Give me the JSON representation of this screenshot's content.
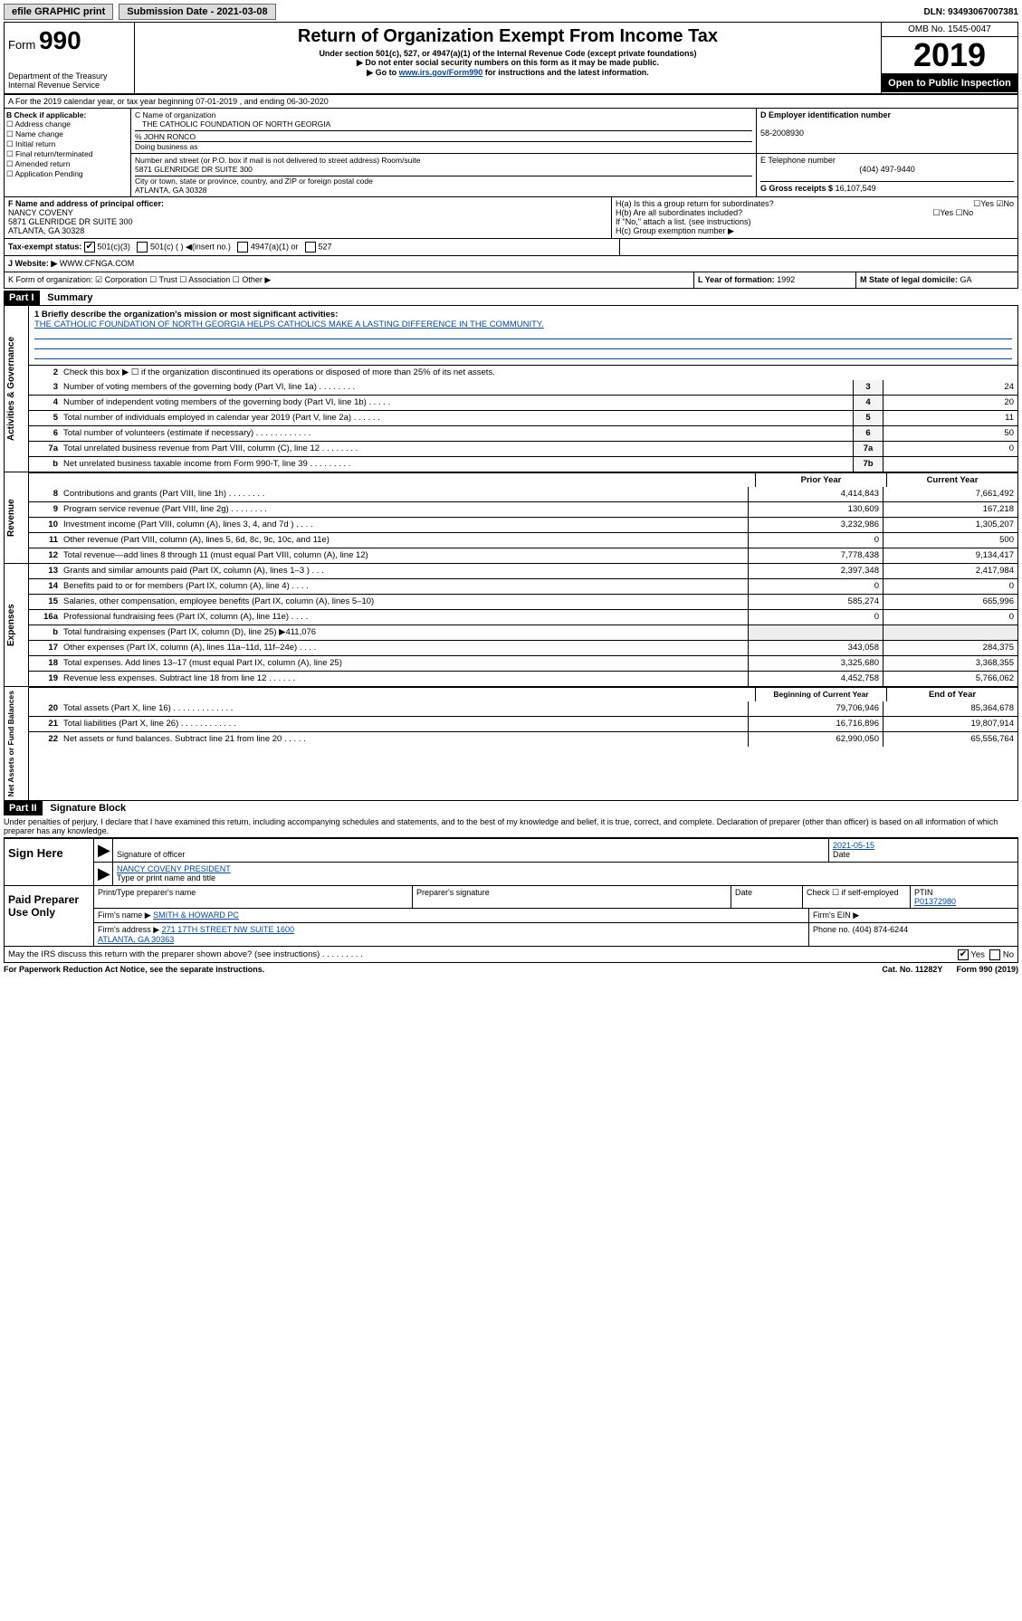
{
  "topbar": {
    "efile": "efile GRAPHIC print",
    "sub_label": "Submission Date - 2021-03-08",
    "dln": "DLN: 93493067007381"
  },
  "header": {
    "form": "Form",
    "form_no": "990",
    "dept": "Department of the Treasury\nInternal Revenue Service",
    "title": "Return of Organization Exempt From Income Tax",
    "sub1": "Under section 501(c), 527, or 4947(a)(1) of the Internal Revenue Code (except private foundations)",
    "sub2": "▶ Do not enter social security numbers on this form as it may be made public.",
    "sub3": "▶ Go to www.irs.gov/Form990 for instructions and the latest information.",
    "omb": "OMB No. 1545-0047",
    "year": "2019",
    "open": "Open to Public Inspection"
  },
  "blockA": "A For the 2019 calendar year, or tax year beginning 07-01-2019    , and ending 06-30-2020",
  "blockB": {
    "title": "B Check if applicable:",
    "items": [
      "Address change",
      "Name change",
      "Initial return",
      "Final return/terminated",
      "Amended return",
      "Application Pending"
    ]
  },
  "blockC": {
    "name_lbl": "C Name of organization",
    "name": "THE CATHOLIC FOUNDATION OF NORTH GEORGIA",
    "care": "% JOHN RONCO",
    "dba_lbl": "Doing business as",
    "addr_lbl": "Number and street (or P.O. box if mail is not delivered to street address)   Room/suite",
    "addr": "5871 GLENRIDGE DR SUITE 300",
    "city_lbl": "City or town, state or province, country, and ZIP or foreign postal code",
    "city": "ATLANTA, GA  30328"
  },
  "blockD": {
    "lbl": "D Employer identification number",
    "val": "58-2008930"
  },
  "blockE": {
    "lbl": "E Telephone number",
    "val": "(404) 497-9440"
  },
  "blockG": {
    "lbl": "G Gross receipts $",
    "val": "16,107,549"
  },
  "blockF": {
    "lbl": "F Name and address of principal officer:",
    "name": "NANCY COVENY",
    "addr": "5871 GLENRIDGE DR SUITE 300\nATLANTA, GA  30328"
  },
  "blockH": {
    "a": "H(a)  Is this a group return for subordinates?",
    "b": "H(b)  Are all subordinates included?",
    "note": "If \"No,\" attach a list. (see instructions)",
    "c": "H(c)  Group exemption number ▶"
  },
  "blockI": {
    "lbl": "Tax-exempt status:",
    "opts": [
      "501(c)(3)",
      "501(c) (   ) ◀(insert no.)",
      "4947(a)(1) or",
      "527"
    ]
  },
  "blockJ": {
    "lbl": "J   Website: ▶",
    "val": "WWW.CFNGA.COM"
  },
  "blockK": "K Form of organization:   ☑ Corporation  ☐ Trust  ☐ Association  ☐ Other ▶",
  "blockL": {
    "lbl": "L Year of formation:",
    "val": "1992"
  },
  "blockM": {
    "lbl": "M State of legal domicile:",
    "val": "GA"
  },
  "part1": {
    "head": "Part I",
    "title": "Summary",
    "vtab1": "Activities & Governance",
    "vtab2": "Revenue",
    "vtab3": "Expenses",
    "vtab4": "Net Assets or Fund Balances",
    "line1_lbl": "1  Briefly describe the organization's mission or most significant activities:",
    "line1_val": "THE CATHOLIC FOUNDATION OF NORTH GEORGIA HELPS CATHOLICS MAKE A LASTING DIFFERENCE IN THE COMMUNITY.",
    "line2": "Check this box ▶ ☐  if the organization discontinued its operations or disposed of more than 25% of its net assets.",
    "rows_gov": [
      {
        "n": "3",
        "lbl": "Number of voting members of the governing body (Part VI, line 1a)   .    .    .    .    .    .    .    .",
        "box": "3",
        "v": "24"
      },
      {
        "n": "4",
        "lbl": "Number of independent voting members of the governing body (Part VI, line 1b)  .    .    .    .    .",
        "box": "4",
        "v": "20"
      },
      {
        "n": "5",
        "lbl": "Total number of individuals employed in calendar year 2019 (Part V, line 2a)   .    .    .    .    .    .",
        "box": "5",
        "v": "11"
      },
      {
        "n": "6",
        "lbl": "Total number of volunteers (estimate if necessary)   .    .    .    .    .    .    .    .    .    .    .    .",
        "box": "6",
        "v": "50"
      },
      {
        "n": "7a",
        "lbl": "Total unrelated business revenue from Part VIII, column (C), line 12  .    .    .    .    .    .    .    .",
        "box": "7a",
        "v": "0"
      },
      {
        "n": "b",
        "lbl": "Net unrelated business taxable income from Form 990-T, line 39   .    .    .    .    .    .    .    .    .",
        "box": "7b",
        "v": ""
      }
    ],
    "py": "Prior Year",
    "cy": "Current Year",
    "rows_rev": [
      {
        "n": "8",
        "lbl": "Contributions and grants (Part VIII, line 1h)   .    .    .    .    .    .    .    .",
        "py": "4,414,843",
        "cy": "7,661,492"
      },
      {
        "n": "9",
        "lbl": "Program service revenue (Part VIII, line 2g)    .    .    .    .    .    .    .    .",
        "py": "130,609",
        "cy": "167,218"
      },
      {
        "n": "10",
        "lbl": "Investment income (Part VIII, column (A), lines 3, 4, and 7d )   .    .    .    .",
        "py": "3,232,986",
        "cy": "1,305,207"
      },
      {
        "n": "11",
        "lbl": "Other revenue (Part VIII, column (A), lines 5, 6d, 8c, 9c, 10c, and 11e)",
        "py": "0",
        "cy": "500"
      },
      {
        "n": "12",
        "lbl": "Total revenue—add lines 8 through 11 (must equal Part VIII, column (A), line 12)",
        "py": "7,778,438",
        "cy": "9,134,417"
      }
    ],
    "rows_exp": [
      {
        "n": "13",
        "lbl": "Grants and similar amounts paid (Part IX, column (A), lines 1–3 )    .    .    .",
        "py": "2,397,348",
        "cy": "2,417,984"
      },
      {
        "n": "14",
        "lbl": "Benefits paid to or for members (Part IX, column (A), line 4)  .    .    .    .",
        "py": "0",
        "cy": "0"
      },
      {
        "n": "15",
        "lbl": "Salaries, other compensation, employee benefits (Part IX, column (A), lines 5–10)",
        "py": "585,274",
        "cy": "665,996"
      },
      {
        "n": "16a",
        "lbl": "Professional fundraising fees (Part IX, column (A), line 11e)   .    .    .    .",
        "py": "0",
        "cy": "0"
      },
      {
        "n": "b",
        "lbl": "Total fundraising expenses (Part IX, column (D), line 25) ▶411,076",
        "py": "",
        "cy": "",
        "shaded": true
      },
      {
        "n": "17",
        "lbl": "Other expenses (Part IX, column (A), lines 11a–11d, 11f–24e)  .    .    .    .",
        "py": "343,058",
        "cy": "284,375"
      },
      {
        "n": "18",
        "lbl": "Total expenses. Add lines 13–17 (must equal Part IX, column (A), line 25)",
        "py": "3,325,680",
        "cy": "3,368,355"
      },
      {
        "n": "19",
        "lbl": "Revenue less expenses. Subtract line 18 from line 12   .    .    .    .    .    .",
        "py": "4,452,758",
        "cy": "5,766,062"
      }
    ],
    "bcy": "Beginning of Current Year",
    "ecy": "End of Year",
    "rows_net": [
      {
        "n": "20",
        "lbl": "Total assets (Part X, line 16)  .    .    .    .    .    .    .    .    .    .    .    .    .",
        "py": "79,706,946",
        "cy": "85,364,678"
      },
      {
        "n": "21",
        "lbl": "Total liabilities (Part X, line 26)  .    .    .    .    .    .    .    .    .    .    .    .",
        "py": "16,716,896",
        "cy": "19,807,914"
      },
      {
        "n": "22",
        "lbl": "Net assets or fund balances. Subtract line 21 from line 20   .    .    .    .    .",
        "py": "62,990,050",
        "cy": "65,556,764"
      }
    ]
  },
  "part2": {
    "head": "Part II",
    "title": "Signature Block",
    "decl": "Under penalties of perjury, I declare that I have examined this return, including accompanying schedules and statements, and to the best of my knowledge and belief, it is true, correct, and complete. Declaration of preparer (other than officer) is based on all information of which preparer has any knowledge.",
    "sign_here": "Sign Here",
    "sig_off": "Signature of officer",
    "date": "2021-05-15",
    "date_lbl": "Date",
    "name_title": "NANCY COVENY PRESIDENT",
    "name_lbl": "Type or print name and title",
    "paid": "Paid Preparer Use Only",
    "pt_name_lbl": "Print/Type preparer's name",
    "pt_sig_lbl": "Preparer's signature",
    "pt_date_lbl": "Date",
    "pt_check": "Check ☐ if self-employed",
    "ptin_lbl": "PTIN",
    "ptin": "P01372980",
    "firm_name_lbl": "Firm's name   ▶",
    "firm_name": "SMITH & HOWARD PC",
    "firm_ein_lbl": "Firm's EIN ▶",
    "firm_addr_lbl": "Firm's address ▶",
    "firm_addr": "271 17TH STREET NW SUITE 1600\nATLANTA, GA  30363",
    "firm_phone_lbl": "Phone no.",
    "firm_phone": "(404) 874-6244",
    "discuss": "May the IRS discuss this return with the preparer shown above? (see instructions)   .    .    .    .    .    .    .    .    .",
    "yes": "Yes",
    "no": "No"
  },
  "footer": {
    "left": "For Paperwork Reduction Act Notice, see the separate instructions.",
    "mid": "Cat. No. 11282Y",
    "right": "Form 990 (2019)"
  }
}
